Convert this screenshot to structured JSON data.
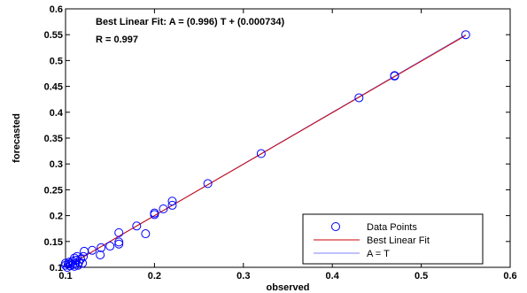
{
  "chart_data": {
    "type": "scatter",
    "xlabel": "observed",
    "ylabel": "forecasted",
    "xlim": [
      0.1,
      0.6
    ],
    "ylim": [
      0.1,
      0.6
    ],
    "x_ticks": [
      "0.1",
      "0.2",
      "0.3",
      "0.4",
      "0.5",
      "0.6"
    ],
    "y_ticks": [
      "0.1",
      "0.15",
      "0.2",
      "0.25",
      "0.3",
      "0.35",
      "0.4",
      "0.45",
      "0.5",
      "0.55",
      "0.6"
    ],
    "annotations": [
      "Best Linear Fit:  A = (0.996) T + (0.000734)",
      "R = 0.997"
    ],
    "legend_position": "bottom-right",
    "fit": {
      "slope": 0.996,
      "intercept": 0.000734
    },
    "series": [
      {
        "name": "Data Points",
        "kind": "markers",
        "color": "#0000ff",
        "points": [
          [
            0.1,
            0.104
          ],
          [
            0.1,
            0.108
          ],
          [
            0.102,
            0.1
          ],
          [
            0.103,
            0.106
          ],
          [
            0.104,
            0.11
          ],
          [
            0.105,
            0.103
          ],
          [
            0.106,
            0.108
          ],
          [
            0.108,
            0.105
          ],
          [
            0.108,
            0.112
          ],
          [
            0.11,
            0.102
          ],
          [
            0.11,
            0.118
          ],
          [
            0.111,
            0.107
          ],
          [
            0.112,
            0.114
          ],
          [
            0.113,
            0.121
          ],
          [
            0.114,
            0.104
          ],
          [
            0.115,
            0.11
          ],
          [
            0.117,
            0.116
          ],
          [
            0.119,
            0.108
          ],
          [
            0.12,
            0.121
          ],
          [
            0.121,
            0.131
          ],
          [
            0.13,
            0.133
          ],
          [
            0.139,
            0.124
          ],
          [
            0.14,
            0.138
          ],
          [
            0.15,
            0.141
          ],
          [
            0.16,
            0.145
          ],
          [
            0.16,
            0.149
          ],
          [
            0.16,
            0.167
          ],
          [
            0.18,
            0.18
          ],
          [
            0.19,
            0.165
          ],
          [
            0.2,
            0.202
          ],
          [
            0.2,
            0.205
          ],
          [
            0.21,
            0.213
          ],
          [
            0.22,
            0.22
          ],
          [
            0.22,
            0.228
          ],
          [
            0.26,
            0.262
          ],
          [
            0.32,
            0.32
          ],
          [
            0.43,
            0.428
          ],
          [
            0.47,
            0.47
          ],
          [
            0.47,
            0.471
          ],
          [
            0.55,
            0.55
          ]
        ]
      },
      {
        "name": "Best Linear Fit",
        "kind": "line",
        "color": "#cc0000"
      },
      {
        "name": "A = T",
        "kind": "line",
        "color": "#8080ff"
      }
    ]
  }
}
